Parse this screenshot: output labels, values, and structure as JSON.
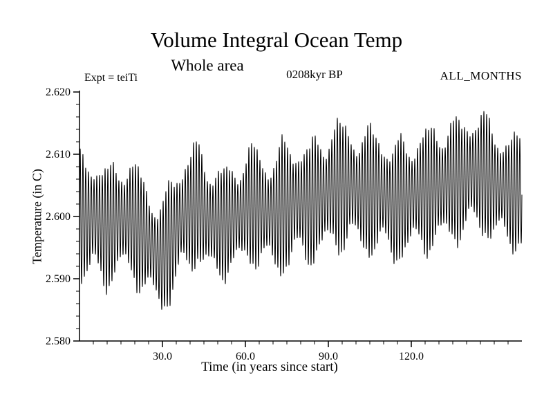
{
  "chart_data": {
    "type": "line",
    "title": "Volume Integral Ocean Temp",
    "subtitle": "Whole area",
    "annotation_expt": "Expt = teiTi",
    "annotation_time": "0208kyr BP",
    "annotation_months": "ALL_MONTHS",
    "xlabel": "Time (in years since start)",
    "ylabel": "Temperature (in C)",
    "xlim": [
      0,
      160
    ],
    "ylim": [
      2.58,
      2.62
    ],
    "grid": false,
    "legend": "none",
    "xticks": [
      {
        "value": 30,
        "label": "30.0"
      },
      {
        "value": 60,
        "label": "60.0"
      },
      {
        "value": 90,
        "label": "90.0"
      },
      {
        "value": 120,
        "label": "120.0"
      }
    ],
    "yticks": [
      {
        "value": 2.58,
        "label": "2.580"
      },
      {
        "value": 2.59,
        "label": "2.590"
      },
      {
        "value": 2.6,
        "label": "2.600"
      },
      {
        "value": 2.61,
        "label": "2.610"
      },
      {
        "value": 2.62,
        "label": "2.620"
      }
    ],
    "x_minor_step": 5,
    "y_minor_step": 0.002,
    "series": [
      {
        "name": "volume integral ocean temperature",
        "color": "#000000",
        "style": "dense annual oscillation, solid black line",
        "period_years": 1,
        "texture_modulation": {
          "period_years": 10.5,
          "depth": 0.22
        },
        "envelope_years": [
          0,
          5,
          10,
          15,
          20,
          25,
          28,
          30,
          33,
          38,
          43,
          48,
          53,
          58,
          63,
          68,
          73,
          78,
          83,
          88,
          93,
          98,
          103,
          108,
          113,
          118,
          123,
          128,
          133,
          138,
          143,
          148,
          153,
          160
        ],
        "envelope_upper": [
          2.61,
          2.611,
          2.608,
          2.61,
          2.609,
          2.606,
          2.603,
          2.602,
          2.607,
          2.611,
          2.612,
          2.609,
          2.608,
          2.61,
          2.612,
          2.61,
          2.612,
          2.613,
          2.612,
          2.614,
          2.616,
          2.615,
          2.614,
          2.615,
          2.612,
          2.613,
          2.614,
          2.615,
          2.616,
          2.616,
          2.618,
          2.616,
          2.614,
          2.613
        ],
        "envelope_lower": [
          2.589,
          2.589,
          2.588,
          2.59,
          2.589,
          2.586,
          2.585,
          2.584,
          2.586,
          2.59,
          2.592,
          2.589,
          2.59,
          2.591,
          2.592,
          2.591,
          2.59,
          2.592,
          2.592,
          2.593,
          2.594,
          2.595,
          2.593,
          2.594,
          2.592,
          2.593,
          2.594,
          2.594,
          2.595,
          2.596,
          2.597,
          2.596,
          2.595,
          2.594
        ]
      }
    ]
  }
}
